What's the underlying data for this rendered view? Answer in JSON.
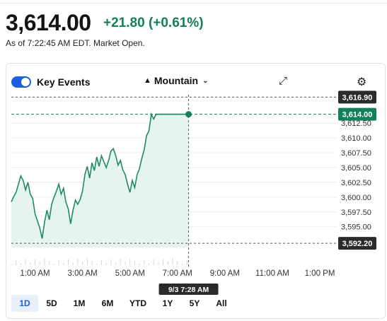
{
  "quote": {
    "price": "3,614.00",
    "change": "+21.80",
    "change_pct": "(+0.61%)",
    "as_of": "As of 7:22:45 AM EDT. Market Open."
  },
  "toolbar": {
    "key_events_label": "Key Events",
    "key_events_on": true,
    "chart_style_label": "Mountain"
  },
  "colors": {
    "accent": "#1a5edb",
    "positive": "#137f5d",
    "line": "#1f8a67",
    "fill": "#e3f3ec"
  },
  "ranges": [
    "1D",
    "5D",
    "1M",
    "6M",
    "YTD",
    "1Y",
    "5Y",
    "All"
  ],
  "active_range": "1D",
  "chart_data": {
    "type": "area",
    "title": "",
    "xlabel": "",
    "ylabel": "",
    "x_ticks": [
      "1:00 AM",
      "3:00 AM",
      "5:00 AM",
      "7:00 AM",
      "9:00 AM",
      "11:00 AM",
      "1:00 PM"
    ],
    "y_ticks": [
      "3,595.00",
      "3,597.50",
      "3,600.00",
      "3,602.50",
      "3,605.00",
      "3,607.50",
      "3,610.00",
      "3,612.50"
    ],
    "ylim": [
      3591.5,
      3617.3
    ],
    "session_hours": [
      0.0,
      13.0
    ],
    "markers": {
      "high": "3,616.90",
      "last": "3,614.00",
      "low": "3,592.20",
      "crosshair_time": "9/3 7:28 AM"
    },
    "grid": true,
    "series": [
      {
        "hours": [
          0.0,
          0.1,
          0.2,
          0.3,
          0.4,
          0.5,
          0.6,
          0.7,
          0.8,
          0.9,
          1.0,
          1.1,
          1.2,
          1.3,
          1.4,
          1.5,
          1.6,
          1.7,
          1.8,
          1.9,
          2.0,
          2.1,
          2.2,
          2.3,
          2.4,
          2.5,
          2.6,
          2.7,
          2.8,
          2.9,
          3.0,
          3.1,
          3.2,
          3.3,
          3.4,
          3.5,
          3.6,
          3.7,
          3.8,
          3.9,
          4.0,
          4.1,
          4.2,
          4.3,
          4.4,
          4.5,
          4.6,
          4.7,
          4.8,
          4.9,
          5.0,
          5.1,
          5.2,
          5.3,
          5.4,
          5.5,
          5.6,
          5.7,
          5.8,
          5.9,
          6.0,
          6.1,
          6.2,
          6.3,
          6.4,
          6.5,
          6.6,
          6.7,
          6.8,
          6.9,
          7.0,
          7.1,
          7.2,
          7.3,
          7.4,
          7.47
        ],
        "values": [
          3599.2,
          3600.1,
          3600.8,
          3602.2,
          3603.6,
          3602.8,
          3601.2,
          3602.5,
          3600.5,
          3599.8,
          3597.2,
          3596.0,
          3594.8,
          3593.0,
          3595.8,
          3597.8,
          3596.2,
          3598.8,
          3600.0,
          3601.0,
          3602.2,
          3600.5,
          3601.5,
          3599.2,
          3598.0,
          3595.5,
          3597.8,
          3599.5,
          3598.8,
          3599.6,
          3601.0,
          3603.8,
          3605.2,
          3603.2,
          3605.8,
          3604.5,
          3606.8,
          3605.2,
          3607.0,
          3606.0,
          3605.0,
          3606.2,
          3607.8,
          3608.2,
          3607.0,
          3605.4,
          3606.2,
          3604.6,
          3603.8,
          3602.2,
          3600.8,
          3602.8,
          3601.6,
          3603.8,
          3604.8,
          3606.6,
          3608.0,
          3610.4,
          3611.2,
          3614.0,
          3613.2,
          3614.0,
          3614.0,
          3614.0,
          3614.0,
          3614.0,
          3614.0,
          3614.0,
          3614.0,
          3614.0,
          3614.0,
          3614.0,
          3614.0,
          3614.0,
          3614.0,
          3614.0
        ]
      }
    ]
  }
}
